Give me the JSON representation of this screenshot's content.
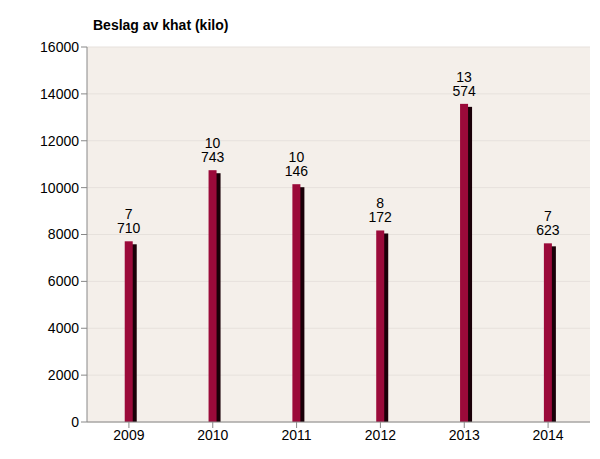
{
  "chart_data": {
    "type": "bar",
    "title": "Beslag av khat (kilo)",
    "categories": [
      "2009",
      "2010",
      "2011",
      "2012",
      "2013",
      "2014"
    ],
    "values": [
      7710,
      10743,
      10146,
      8172,
      13574,
      7623
    ],
    "value_labels": [
      "7 710",
      "10 743",
      "10 146",
      "8 172",
      "13 574",
      "7 623"
    ],
    "color": "#9b0a3a",
    "ylim": [
      0,
      16000
    ],
    "yticks": [
      0,
      2000,
      4000,
      6000,
      8000,
      10000,
      12000,
      14000,
      16000
    ],
    "grid": true,
    "data_labels": true
  }
}
